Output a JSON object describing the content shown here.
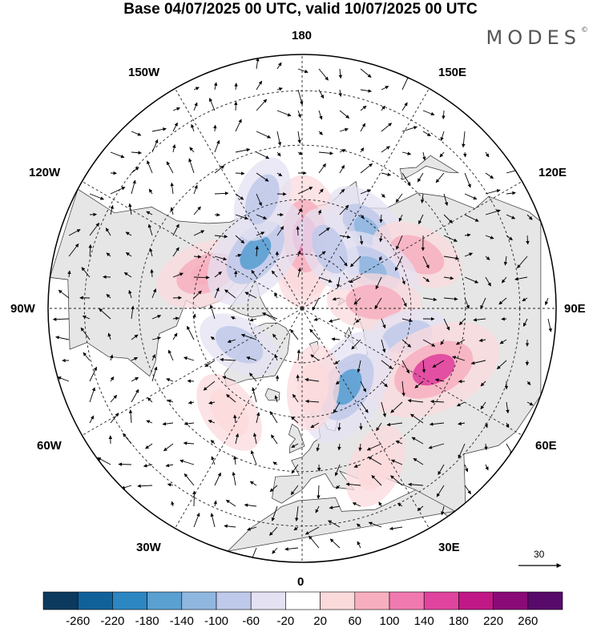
{
  "title": "Base 04/07/2025 00 UTC, valid 10/07/2025 00 UTC",
  "brand": "MODES",
  "brand_mark": "©",
  "longitude_labels": {
    "top": "180",
    "bottom": "0",
    "left": "90W",
    "right": "90E",
    "upper_left_1": "150W",
    "upper_left_2": "120W",
    "upper_right_1": "150E",
    "upper_right_2": "120E",
    "lower_left_1": "60W",
    "lower_left_2": "30W",
    "lower_right_1": "60E",
    "lower_right_2": "30E"
  },
  "reference_vector_label": "30",
  "colorbar": {
    "labels": [
      "-260",
      "-220",
      "-180",
      "-140",
      "-100",
      "-60",
      "-20",
      "20",
      "60",
      "100",
      "140",
      "180",
      "220",
      "260"
    ],
    "colors": [
      "#0b3a5e",
      "#10619a",
      "#2c86c2",
      "#5aa0d1",
      "#8fb7e0",
      "#bfc9ea",
      "#e4e2f2",
      "#ffffff",
      "#fbdadc",
      "#f7afbf",
      "#f07ab0",
      "#e0449e",
      "#c01886",
      "#8a0a78",
      "#580a6a"
    ]
  },
  "colors": {
    "land": "#e6e6e6",
    "ocean": "#ffffff",
    "coast": "#333333",
    "grid": "#222222"
  },
  "anomaly_field": [
    {
      "lat": 78,
      "lon": 180,
      "value": 60
    },
    {
      "lat": 70,
      "lon": 178,
      "value": 140
    },
    {
      "lat": 62,
      "lon": 140,
      "value": -100
    },
    {
      "lat": 55,
      "lon": 115,
      "value": 80
    },
    {
      "lat": 68,
      "lon": 120,
      "value": -100
    },
    {
      "lat": 70,
      "lon": 95,
      "value": 80
    },
    {
      "lat": 60,
      "lon": 75,
      "value": -60
    },
    {
      "lat": 50,
      "lon": 65,
      "value": 180
    },
    {
      "lat": 65,
      "lon": 30,
      "value": -140
    },
    {
      "lat": 42,
      "lon": 25,
      "value": 60
    },
    {
      "lat": 68,
      "lon": 8,
      "value": 60
    },
    {
      "lat": 55,
      "lon": -35,
      "value": 60
    },
    {
      "lat": 70,
      "lon": -60,
      "value": -60
    },
    {
      "lat": 62,
      "lon": -110,
      "value": 100
    },
    {
      "lat": 70,
      "lon": -140,
      "value": -140
    },
    {
      "lat": 58,
      "lon": -160,
      "value": -60
    },
    {
      "lat": 72,
      "lon": 155,
      "value": -60
    }
  ]
}
